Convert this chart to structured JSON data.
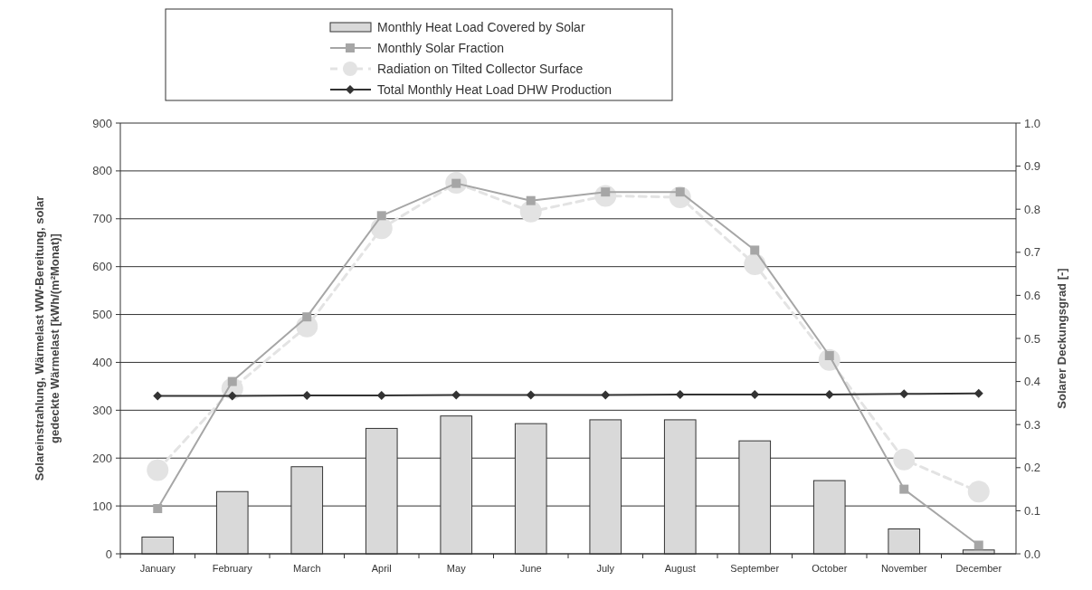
{
  "chart_data": {
    "type": "bar",
    "categories": [
      "January",
      "February",
      "March",
      "April",
      "May",
      "June",
      "July",
      "August",
      "September",
      "October",
      "November",
      "December"
    ],
    "ylabel": "Solareinstrahlung, Wärmelast WW-Bereitung, solar\ngedeckte Wärmelast   [kWh/(m²Monat)]",
    "y2label": "Solarer Deckungsgrad [-]",
    "ylim": [
      0,
      900
    ],
    "yticks": [
      0,
      100,
      200,
      300,
      400,
      500,
      600,
      700,
      800,
      900
    ],
    "y2lim": [
      0,
      1
    ],
    "y2ticks": [
      {
        "value": 0,
        "label": "0.0"
      },
      0.1,
      0.2,
      0.3,
      0.4,
      0.5,
      0.6,
      0.7,
      0.8,
      0.9,
      {
        "value": 1,
        "label": "1.0"
      }
    ],
    "grid": "y",
    "legend": "top",
    "series": [
      {
        "name": "Monthly Heat Load Covered by Solar",
        "color": "#d9d9d9",
        "values": [
          35,
          130,
          182,
          262,
          288,
          272,
          280,
          280,
          236,
          153,
          52,
          8
        ]
      },
      {
        "name": "Monthly Solar Fraction",
        "type": "line",
        "axis": "y2",
        "color": "#a6a6a6",
        "marker": "square",
        "line_style": "solid",
        "values": [
          0.105,
          0.4,
          0.55,
          0.785,
          0.86,
          0.82,
          0.84,
          0.84,
          0.705,
          0.46,
          0.15,
          0.02
        ]
      },
      {
        "name": "Radiation on Tilted Collector Surface",
        "type": "line",
        "color": "#e3e3e3",
        "marker": "circle",
        "line_style": "dashed",
        "values": [
          175,
          345,
          475,
          680,
          775,
          715,
          748,
          745,
          605,
          405,
          197,
          130
        ]
      },
      {
        "name": "Total Monthly Heat Load DHW Production",
        "type": "line",
        "color": "#333333",
        "marker": "diamond",
        "line_style": "solid",
        "values": [
          330,
          330,
          331,
          331,
          332,
          332,
          332,
          333,
          333,
          333,
          334,
          335
        ]
      }
    ]
  }
}
